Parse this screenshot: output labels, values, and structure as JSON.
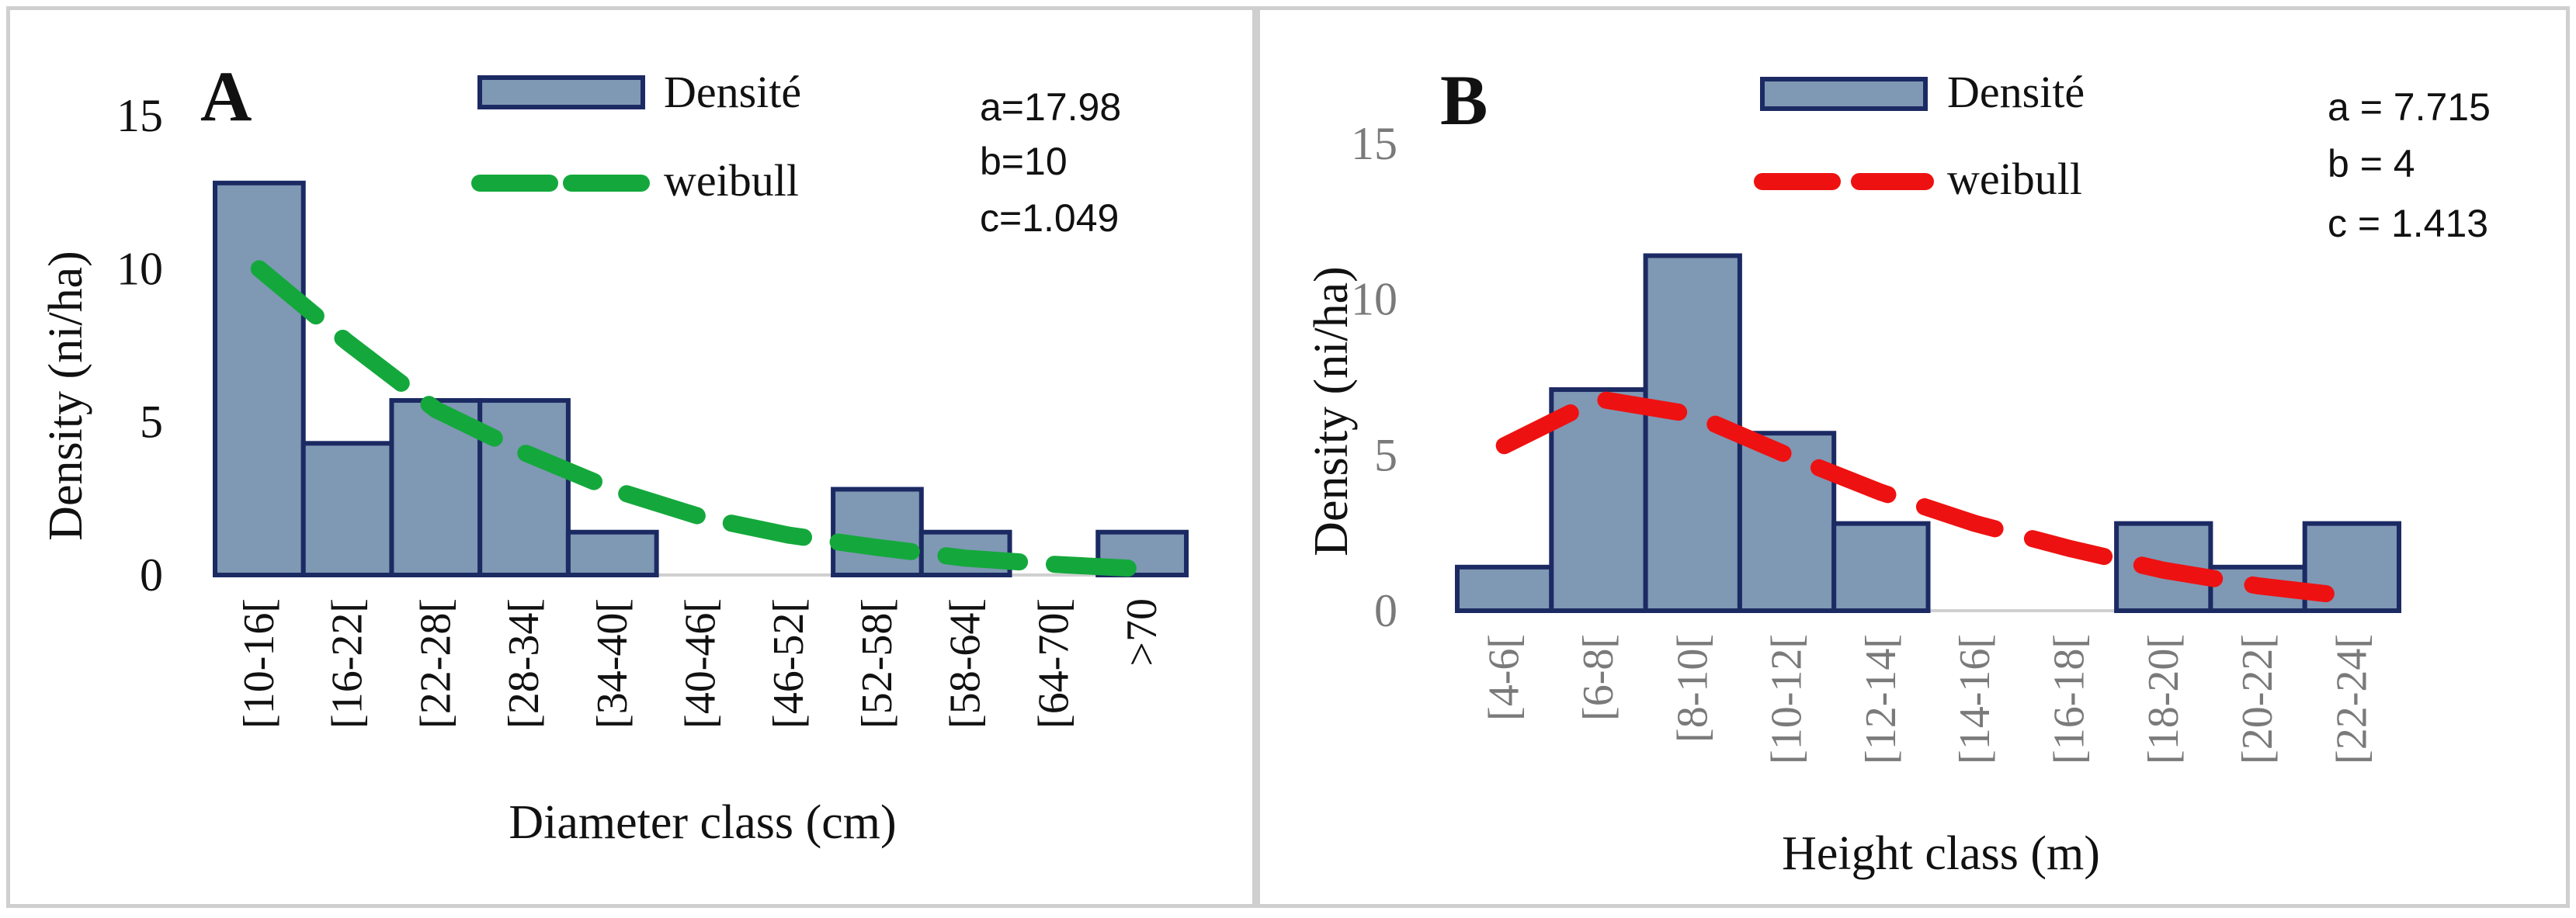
{
  "chart_data": [
    {
      "type": "bar",
      "panel_label": "A",
      "title": "",
      "xlabel": "Diameter class (cm)",
      "ylabel": "Density (ni/ha)",
      "ylim": [
        0,
        15
      ],
      "yticks": [
        "0",
        "5",
        "10",
        "15"
      ],
      "categories": [
        "[10-16[",
        "[16-22[",
        "[22-28[",
        "[28-34[",
        "[34-40[",
        "[40-46[",
        "[46-52[",
        "[52-58[",
        "[58-64[",
        "[64-70[",
        ">70"
      ],
      "series": [
        {
          "name": "Densité",
          "kind": "bar",
          "values": [
            12.8,
            4.3,
            5.7,
            5.7,
            1.4,
            0,
            0,
            2.8,
            1.4,
            0,
            1.4
          ]
        },
        {
          "name": "weibull",
          "kind": "line",
          "color": "#14a83c",
          "values": [
            10.0,
            7.6,
            5.4,
            4.0,
            2.8,
            1.9,
            1.3,
            0.9,
            0.55,
            0.35,
            0.2
          ]
        }
      ],
      "legend": [
        "Densité",
        "weibull"
      ],
      "params": [
        "a=17.98",
        "b=10",
        "c=1.049"
      ]
    },
    {
      "type": "bar",
      "panel_label": "B",
      "title": "",
      "xlabel": "Height class (m)",
      "ylabel": "Density (ni/ha)",
      "ylim": [
        0,
        15
      ],
      "yticks": [
        "0",
        "5",
        "10",
        "15"
      ],
      "categories": [
        "[4-6[",
        "[6-8[",
        "[8-10[",
        "[10-12[",
        "[12-14[",
        "[14-16[",
        "[16-18[",
        "[18-20[",
        "[20-22[",
        "[22-24["
      ],
      "series": [
        {
          "name": "Densité",
          "kind": "bar",
          "values": [
            1.4,
            7.1,
            11.4,
            5.7,
            2.8,
            0,
            0,
            2.8,
            1.4,
            2.8
          ]
        },
        {
          "name": "weibull",
          "kind": "line",
          "color": "#ee1111",
          "values": [
            5.3,
            6.8,
            6.3,
            5.0,
            3.8,
            2.8,
            2.0,
            1.3,
            0.8,
            0.45
          ]
        }
      ],
      "legend": [
        "Densité",
        "weibull"
      ],
      "params": [
        "a = 7.715",
        "b = 4",
        "c = 1.413"
      ]
    }
  ]
}
